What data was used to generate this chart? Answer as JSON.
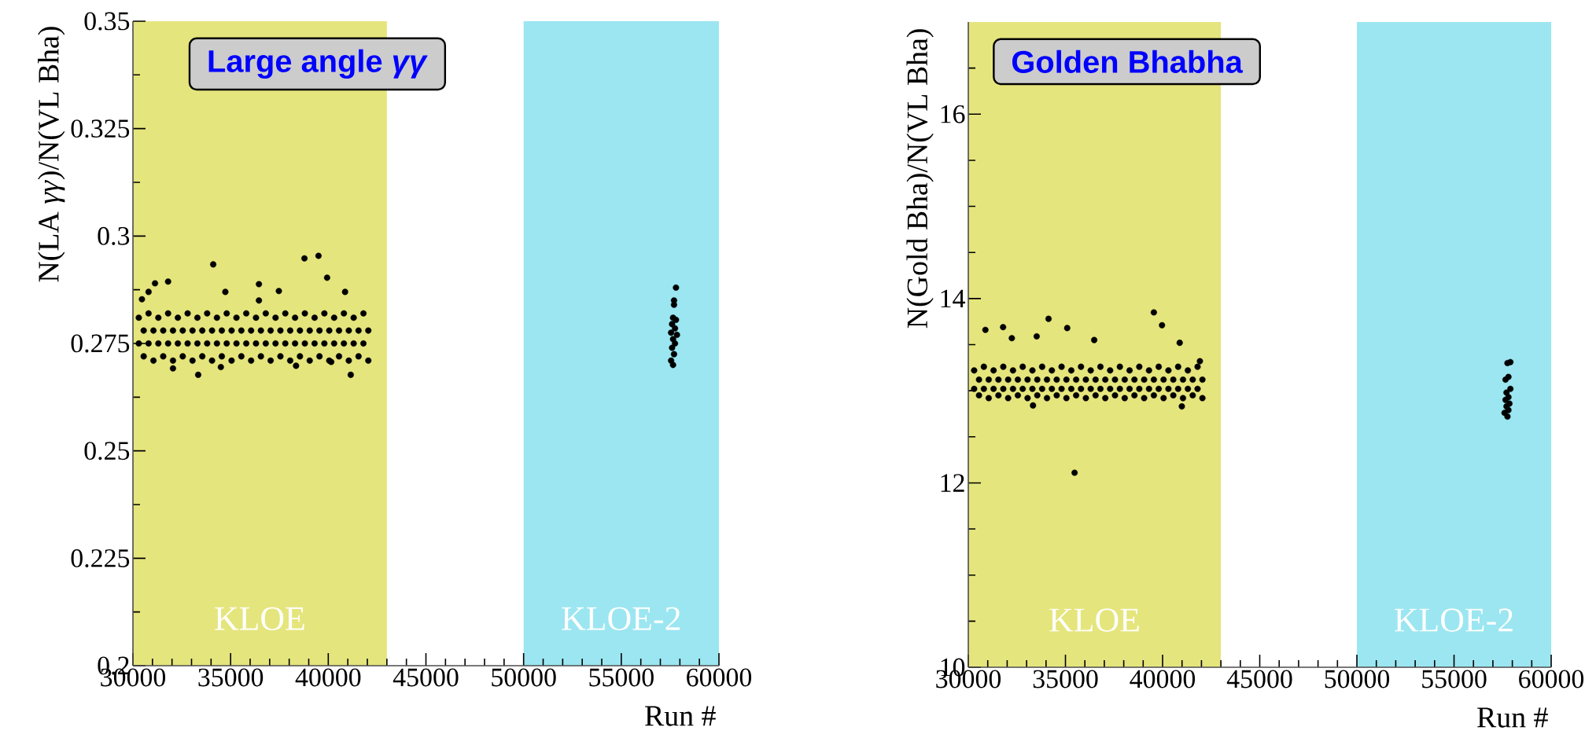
{
  "chart_data": [
    {
      "type": "scatter",
      "title": "Large angle *γγ*",
      "xlabel": "Run #",
      "ylabel": "N(LA *γγ*)/N(VL Bha)",
      "color": "#000000",
      "xlim": [
        30000,
        60000
      ],
      "ylim": [
        0.2,
        0.35
      ],
      "xticks": [
        30000,
        {
          "value": 31000,
          "label": null
        },
        {
          "value": 32000,
          "label": null
        },
        {
          "value": 33000,
          "label": null
        },
        {
          "value": 34000,
          "label": null
        },
        35000,
        {
          "value": 36000,
          "label": null
        },
        {
          "value": 37000,
          "label": null
        },
        {
          "value": 38000,
          "label": null
        },
        {
          "value": 39000,
          "label": null
        },
        40000,
        {
          "value": 41000,
          "label": null
        },
        {
          "value": 42000,
          "label": null
        },
        {
          "value": 43000,
          "label": null
        },
        {
          "value": 44000,
          "label": null
        },
        45000,
        {
          "value": 46000,
          "label": null
        },
        {
          "value": 47000,
          "label": null
        },
        {
          "value": 48000,
          "label": null
        },
        {
          "value": 49000,
          "label": null
        },
        50000,
        {
          "value": 51000,
          "label": null
        },
        {
          "value": 52000,
          "label": null
        },
        {
          "value": 53000,
          "label": null
        },
        {
          "value": 54000,
          "label": null
        },
        55000,
        {
          "value": 56000,
          "label": null
        },
        {
          "value": 57000,
          "label": null
        },
        {
          "value": 58000,
          "label": null
        },
        {
          "value": 59000,
          "label": null
        },
        60000
      ],
      "yticks": [
        0.2,
        {
          "value": 0.2125,
          "label": null
        },
        0.225,
        {
          "value": 0.2375,
          "label": null
        },
        0.25,
        {
          "value": 0.2625,
          "label": null
        },
        0.275,
        {
          "value": 0.2875,
          "label": null
        },
        0.3,
        {
          "value": 0.3125,
          "label": null
        },
        0.325,
        {
          "value": 0.3375,
          "label": null
        },
        0.35
      ],
      "bands": [
        {
          "axis": "x",
          "from": 30000,
          "to": 43000,
          "label": "KLOE",
          "color": "#e5e57d"
        },
        {
          "axis": "x",
          "from": 50000,
          "to": 60000,
          "label": "KLOE-2",
          "color": "#9be6f1"
        }
      ],
      "x": [
        30300,
        30800,
        31300,
        31800,
        32300,
        32800,
        33300,
        33800,
        34300,
        34800,
        35300,
        35800,
        36300,
        36800,
        37300,
        37800,
        38300,
        38800,
        39300,
        39800,
        40300,
        40800,
        41300,
        41800,
        30550,
        31050,
        31550,
        32050,
        32550,
        33050,
        33550,
        34050,
        34550,
        35050,
        35550,
        36050,
        36550,
        37050,
        37550,
        38050,
        38550,
        39050,
        39550,
        40050,
        40550,
        41050,
        41550,
        42050,
        30300,
        30800,
        31300,
        31800,
        32300,
        32800,
        33300,
        33800,
        34300,
        34800,
        35300,
        35800,
        36300,
        36800,
        37300,
        37800,
        38300,
        38800,
        39300,
        39800,
        40300,
        40800,
        41300,
        41800,
        30550,
        31050,
        31550,
        32050,
        32550,
        33050,
        33550,
        34050,
        34550,
        35050,
        35550,
        36050,
        36550,
        37050,
        37550,
        38050,
        38550,
        39050,
        39550,
        40050,
        40550,
        41050,
        41550,
        42050,
        34110,
        38780,
        39500,
        39940,
        31800,
        31130,
        30800,
        36450,
        33340,
        41150,
        37470,
        40860,
        34730,
        32050,
        34500,
        38350,
        40150,
        30460,
        36450,
        57800,
        57700,
        57700,
        57650,
        57800,
        57600,
        57750,
        57550,
        57850,
        57650,
        57750,
        57600,
        57700,
        57550,
        57650
      ],
      "values": [
        0.281,
        0.282,
        0.281,
        0.282,
        0.281,
        0.282,
        0.281,
        0.282,
        0.281,
        0.282,
        0.281,
        0.282,
        0.281,
        0.282,
        0.281,
        0.282,
        0.281,
        0.282,
        0.281,
        0.282,
        0.281,
        0.282,
        0.281,
        0.282,
        0.278,
        0.278,
        0.278,
        0.278,
        0.278,
        0.278,
        0.278,
        0.278,
        0.278,
        0.278,
        0.278,
        0.278,
        0.278,
        0.278,
        0.278,
        0.278,
        0.278,
        0.278,
        0.278,
        0.278,
        0.278,
        0.278,
        0.278,
        0.278,
        0.275,
        0.275,
        0.275,
        0.275,
        0.275,
        0.275,
        0.275,
        0.275,
        0.275,
        0.275,
        0.275,
        0.275,
        0.275,
        0.275,
        0.275,
        0.275,
        0.275,
        0.275,
        0.275,
        0.275,
        0.275,
        0.275,
        0.275,
        0.275,
        0.272,
        0.271,
        0.272,
        0.271,
        0.272,
        0.271,
        0.272,
        0.271,
        0.272,
        0.271,
        0.272,
        0.271,
        0.272,
        0.271,
        0.272,
        0.271,
        0.272,
        0.271,
        0.272,
        0.271,
        0.272,
        0.271,
        0.272,
        0.271,
        0.2934,
        0.2948,
        0.2954,
        0.2903,
        0.2894,
        0.289,
        0.287,
        0.2888,
        0.2677,
        0.2677,
        0.2872,
        0.287,
        0.287,
        0.2692,
        0.2695,
        0.2698,
        0.2707,
        0.2853,
        0.285,
        0.288,
        0.285,
        0.284,
        0.281,
        0.2805,
        0.2795,
        0.2785,
        0.2775,
        0.277,
        0.276,
        0.275,
        0.274,
        0.2725,
        0.271,
        0.27
      ]
    },
    {
      "type": "scatter",
      "title": "Golden Bhabha",
      "xlabel": "Run #",
      "ylabel": "N(Gold Bha)/N(VL Bha)",
      "color": "#000000",
      "xlim": [
        30000,
        60000
      ],
      "ylim": [
        10,
        17
      ],
      "xticks": [
        30000,
        {
          "value": 31000,
          "label": null
        },
        {
          "value": 32000,
          "label": null
        },
        {
          "value": 33000,
          "label": null
        },
        {
          "value": 34000,
          "label": null
        },
        35000,
        {
          "value": 36000,
          "label": null
        },
        {
          "value": 37000,
          "label": null
        },
        {
          "value": 38000,
          "label": null
        },
        {
          "value": 39000,
          "label": null
        },
        40000,
        {
          "value": 41000,
          "label": null
        },
        {
          "value": 42000,
          "label": null
        },
        {
          "value": 43000,
          "label": null
        },
        {
          "value": 44000,
          "label": null
        },
        45000,
        {
          "value": 46000,
          "label": null
        },
        {
          "value": 47000,
          "label": null
        },
        {
          "value": 48000,
          "label": null
        },
        {
          "value": 49000,
          "label": null
        },
        50000,
        {
          "value": 51000,
          "label": null
        },
        {
          "value": 52000,
          "label": null
        },
        {
          "value": 53000,
          "label": null
        },
        {
          "value": 54000,
          "label": null
        },
        55000,
        {
          "value": 56000,
          "label": null
        },
        {
          "value": 57000,
          "label": null
        },
        {
          "value": 58000,
          "label": null
        },
        {
          "value": 59000,
          "label": null
        },
        60000
      ],
      "yticks": [
        10,
        {
          "value": 10.5,
          "label": null
        },
        {
          "value": 11,
          "label": null
        },
        {
          "value": 11.5,
          "label": null
        },
        12,
        {
          "value": 12.5,
          "label": null
        },
        {
          "value": 13,
          "label": null
        },
        {
          "value": 13.5,
          "label": null
        },
        14,
        {
          "value": 14.5,
          "label": null
        },
        {
          "value": 15,
          "label": null
        },
        {
          "value": 15.5,
          "label": null
        },
        16,
        {
          "value": 16.5,
          "label": null
        }
      ],
      "bands": [
        {
          "axis": "x",
          "from": 30000,
          "to": 43000,
          "label": "KLOE",
          "color": "#e5e57d"
        },
        {
          "axis": "x",
          "from": 50000,
          "to": 60000,
          "label": "KLOE-2",
          "color": "#9be6f1"
        }
      ],
      "x": [
        30300,
        30800,
        31300,
        31800,
        32300,
        32800,
        33300,
        33800,
        34300,
        34800,
        35300,
        35800,
        36300,
        36800,
        37300,
        37800,
        38300,
        38800,
        39300,
        39800,
        40300,
        40800,
        41300,
        41800,
        30550,
        31050,
        31550,
        32050,
        32550,
        33050,
        33550,
        34050,
        34550,
        35050,
        35550,
        36050,
        36550,
        37050,
        37550,
        38050,
        38550,
        39050,
        39550,
        40050,
        40550,
        41050,
        41550,
        42050,
        30300,
        30800,
        31300,
        31800,
        32300,
        32800,
        33300,
        33800,
        34300,
        34800,
        35300,
        35800,
        36300,
        36800,
        37300,
        37800,
        38300,
        38800,
        39300,
        39800,
        40300,
        40800,
        41300,
        41800,
        30550,
        31050,
        31550,
        32050,
        32550,
        33050,
        33550,
        34050,
        34550,
        35050,
        35550,
        36050,
        36550,
        37050,
        37550,
        38050,
        38550,
        39050,
        39550,
        40050,
        40550,
        41050,
        41550,
        42050,
        35470,
        39550,
        34130,
        39970,
        30880,
        31790,
        35090,
        33520,
        36480,
        32240,
        40880,
        41920,
        33330,
        40990,
        57900,
        57750,
        57800,
        57650,
        57900,
        57700,
        57800,
        57650,
        57850,
        57700,
        57800,
        57600,
        57750
      ],
      "values": [
        13.22,
        13.26,
        13.22,
        13.26,
        13.22,
        13.26,
        13.22,
        13.26,
        13.22,
        13.26,
        13.22,
        13.26,
        13.22,
        13.26,
        13.22,
        13.26,
        13.22,
        13.26,
        13.22,
        13.26,
        13.22,
        13.26,
        13.22,
        13.26,
        13.12,
        13.12,
        13.12,
        13.12,
        13.12,
        13.12,
        13.12,
        13.12,
        13.12,
        13.12,
        13.12,
        13.12,
        13.12,
        13.12,
        13.12,
        13.12,
        13.12,
        13.12,
        13.12,
        13.12,
        13.12,
        13.12,
        13.12,
        13.12,
        13.02,
        13.02,
        13.02,
        13.02,
        13.02,
        13.02,
        13.02,
        13.02,
        13.02,
        13.02,
        13.02,
        13.02,
        13.02,
        13.02,
        13.02,
        13.02,
        13.02,
        13.02,
        13.02,
        13.02,
        13.02,
        13.02,
        13.02,
        13.02,
        12.95,
        12.92,
        12.95,
        12.92,
        12.95,
        12.92,
        12.95,
        12.92,
        12.95,
        12.92,
        12.95,
        12.92,
        12.95,
        12.92,
        12.95,
        12.92,
        12.95,
        12.92,
        12.95,
        12.92,
        12.95,
        12.92,
        12.95,
        12.92,
        12.11,
        13.85,
        13.78,
        13.71,
        13.66,
        13.69,
        13.68,
        13.59,
        13.55,
        13.57,
        13.52,
        13.32,
        12.84,
        12.83,
        13.31,
        13.3,
        13.15,
        13.12,
        13.02,
        12.98,
        12.93,
        12.9,
        12.86,
        12.83,
        12.79,
        12.76,
        12.72
      ]
    }
  ]
}
